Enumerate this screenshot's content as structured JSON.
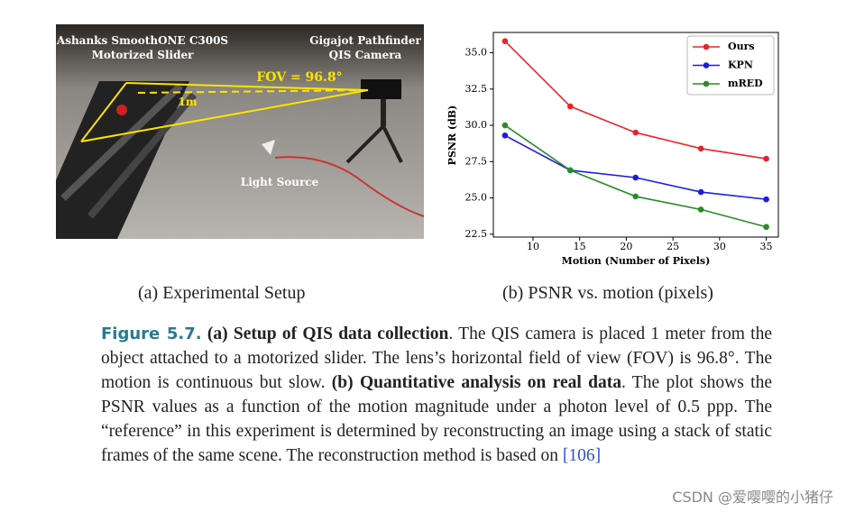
{
  "photo": {
    "labels": [
      "Ashanks SmoothONE C300S",
      "Motorized Slider",
      "Gigajot Pathfinder",
      "QIS Camera",
      "FOV = 96.8°",
      "1m",
      "Light Source"
    ]
  },
  "chart_data": {
    "type": "line",
    "x_label": "Motion (Number of Pixels)",
    "y_label": "PSNR (dB)",
    "x": [
      7,
      14,
      21,
      28,
      35
    ],
    "series": [
      {
        "name": "Ours",
        "color": "#e8242b",
        "values": [
          35.8,
          31.3,
          29.5,
          28.4,
          27.7
        ]
      },
      {
        "name": "KPN",
        "color": "#1c1ce0",
        "values": [
          29.3,
          26.9,
          26.4,
          25.4,
          24.9
        ]
      },
      {
        "name": "mRED",
        "color": "#2a8c2a",
        "values": [
          30.0,
          26.9,
          25.1,
          24.2,
          23.0
        ]
      }
    ],
    "xlim": [
      5.75,
      36.3
    ],
    "ylim": [
      22.3,
      36.4
    ],
    "xticks": [
      10,
      15,
      20,
      25,
      30,
      35
    ],
    "yticks": [
      22.5,
      {
        "value": 25,
        "label": "25.0"
      },
      27.5,
      {
        "value": 30,
        "label": "30.0"
      },
      32.5,
      {
        "value": 35,
        "label": "35.0"
      }
    ],
    "legend": "upper right",
    "grid": false
  },
  "subcaptions": [
    "(a) Experimental Setup",
    "(b) PSNR vs. motion (pixels)"
  ],
  "caption": [
    "Figure 5.7.",
    "(a) Setup of QIS data collection",
    ". The QIS camera is placed 1 meter from the object attached to a motorized slider. The lens’s horizontal field of view (FOV) is 96.8°. The motion is continuous but slow. ",
    "(b) Quantitative analysis on real data",
    ". The plot shows the PSNR values as a function of the motion magnitude under a photon level of 0.5 ppp. The “reference” in this experiment is determined by reconstructing an image using a stack of static frames of the same scene. The reconstruction method is based on ",
    "[106]"
  ],
  "watermark": "CSDN @爱嘤嘤的小猪仔"
}
